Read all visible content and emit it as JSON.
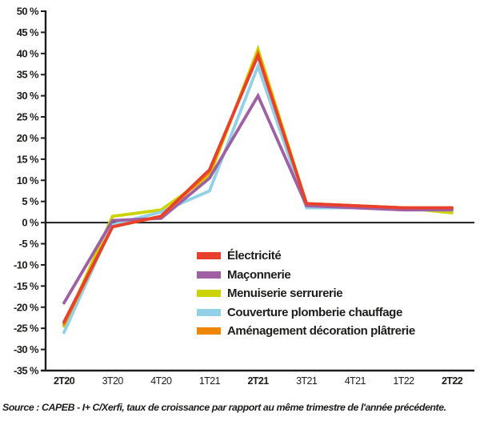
{
  "chart_data": {
    "type": "line",
    "title": "",
    "xlabel": "",
    "ylabel": "",
    "categories": [
      "2T20",
      "3T20",
      "4T20",
      "1T21",
      "2T21",
      "3T21",
      "4T21",
      "1T22",
      "2T22"
    ],
    "bold_categories": [
      "2T20",
      "2T21",
      "2T22"
    ],
    "series": [
      {
        "name": "Électricité",
        "color": "#e8402d",
        "values": [
          -23.5,
          -1,
          1.5,
          12.5,
          39.5,
          4.5,
          4,
          3.5,
          3.5
        ]
      },
      {
        "name": "Maçonnerie",
        "color": "#9e5fa3",
        "values": [
          -19,
          0.5,
          1,
          10.5,
          30,
          4,
          3.5,
          3,
          3
        ]
      },
      {
        "name": "Menuiserie serrurerie",
        "color": "#cbd400",
        "values": [
          -24.5,
          1.5,
          3,
          11,
          41,
          4.5,
          4,
          3.5,
          2.3
        ]
      },
      {
        "name": "Couverture plomberie chauffage",
        "color": "#92d0e8",
        "values": [
          -26,
          -0.5,
          2.5,
          7.5,
          37,
          3.5,
          3.5,
          3,
          3
        ]
      },
      {
        "name": "Aménagement décoration plâtrerie",
        "color": "#ee8600",
        "values": [
          -24,
          -1,
          1.5,
          12,
          40,
          4.5,
          4,
          3.5,
          3.5
        ]
      }
    ],
    "ylim": [
      -35,
      50
    ],
    "ytick_step": 5,
    "ytick_suffix": " %",
    "grid": false,
    "zero_line": true,
    "legend_position": "inside-bottom-center"
  },
  "colors": {
    "axis": "#1d1d1b",
    "text": "#1d1d1b",
    "background": "#ffffff"
  },
  "source": {
    "text": "Source : CAPEB - I+ C/Xerfi, taux de croissance par rapport au même trimestre de l'année précédente."
  }
}
